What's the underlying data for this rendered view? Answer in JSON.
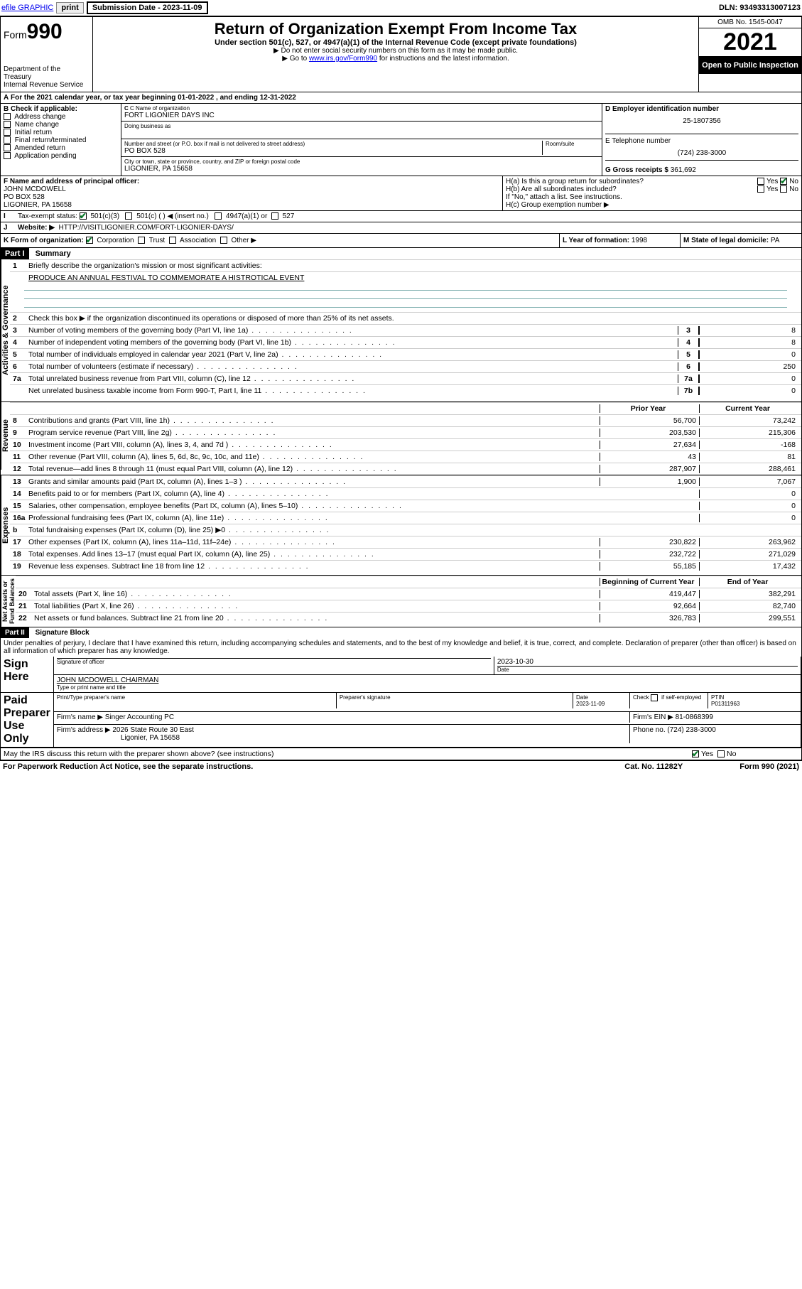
{
  "topbar": {
    "efile": "efile GRAPHIC",
    "print": "print",
    "sub_label": "Submission Date - ",
    "sub_date": "2023-11-09",
    "dln_label": "DLN: ",
    "dln": "93493313007123"
  },
  "hdr": {
    "form": "Form",
    "num": "990",
    "dept": "Department of the Treasury",
    "irs": "Internal Revenue Service",
    "title": "Return of Organization Exempt From Income Tax",
    "sub": "Under section 501(c), 527, or 4947(a)(1) of the Internal Revenue Code (except private foundations)",
    "ssn": "▶ Do not enter social security numbers on this form as it may be made public.",
    "goto_pre": "▶ Go to ",
    "goto_link": "www.irs.gov/Form990",
    "goto_post": " for instructions and the latest information.",
    "omb": "OMB No. 1545-0047",
    "year": "2021",
    "open": "Open to Public Inspection"
  },
  "A": {
    "text": "For the 2021 calendar year, or tax year beginning ",
    "beg": "01-01-2022",
    "mid": " , and ending ",
    "end": "12-31-2022"
  },
  "B": {
    "label": "B Check if applicable:",
    "items": [
      "Address change",
      "Name change",
      "Initial return",
      "Final return/terminated",
      "Amended return",
      "Application pending"
    ]
  },
  "C": {
    "name_lbl": "C Name of organization",
    "name": "FORT LIGONIER DAYS INC",
    "dba_lbl": "Doing business as",
    "addr_lbl": "Number and street (or P.O. box if mail is not delivered to street address)",
    "addr": "PO BOX 528",
    "room_lbl": "Room/suite",
    "city_lbl": "City or town, state or province, country, and ZIP or foreign postal code",
    "city": "LIGONIER, PA  15658"
  },
  "D": {
    "lbl": "D Employer identification number",
    "val": "25-1807356"
  },
  "E": {
    "lbl": "E Telephone number",
    "val": "(724) 238-3000"
  },
  "G": {
    "lbl": "G Gross receipts $ ",
    "val": "361,692"
  },
  "F": {
    "lbl": "F  Name and address of principal officer:",
    "name": "JOHN MCDOWELL",
    "addr1": "PO BOX 528",
    "addr2": "LIGONIER, PA  15658"
  },
  "H": {
    "a": "H(a)  Is this a group return for subordinates?",
    "b": "H(b)  Are all subordinates included?",
    "note": "If \"No,\" attach a list. See instructions.",
    "c": "H(c)  Group exemption number ▶",
    "yes": "Yes",
    "no": "No"
  },
  "I": {
    "lbl": "Tax-exempt status:",
    "o1": "501(c)(3)",
    "o2": "501(c) (  ) ◀ (insert no.)",
    "o3": "4947(a)(1) or",
    "o4": "527"
  },
  "J": {
    "lbl": "Website: ▶",
    "val": "HTTP://VISITLIGONIER.COM/FORT-LIGONIER-DAYS/"
  },
  "K": {
    "lbl": "K Form of organization:",
    "corp": "Corporation",
    "trust": "Trust",
    "assoc": "Association",
    "other": "Other ▶"
  },
  "L": {
    "lbl": "L Year of formation: ",
    "val": "1998"
  },
  "M": {
    "lbl": "M State of legal domicile: ",
    "val": "PA"
  },
  "part1": {
    "hdr": "Part I",
    "title": "Summary",
    "l1": "Briefly describe the organization's mission or most significant activities:",
    "mission": "PRODUCE AN ANNUAL FESTIVAL TO COMMEMORATE A HISTROTICAL EVENT",
    "l2": "Check this box ▶       if the organization discontinued its operations or disposed of more than 25% of its net assets.",
    "sideA": "Activities & Governance",
    "sideR": "Revenue",
    "sideE": "Expenses",
    "sideN": "Net Assets or Fund Balances",
    "prior": "Prior Year",
    "curr": "Current Year",
    "boy": "Beginning of Current Year",
    "eoy": "End of Year",
    "rows_ag": [
      {
        "n": "3",
        "d": "Number of voting members of the governing body (Part VI, line 1a)",
        "k": "3",
        "v": "8"
      },
      {
        "n": "4",
        "d": "Number of independent voting members of the governing body (Part VI, line 1b)",
        "k": "4",
        "v": "8"
      },
      {
        "n": "5",
        "d": "Total number of individuals employed in calendar year 2021 (Part V, line 2a)",
        "k": "5",
        "v": "0"
      },
      {
        "n": "6",
        "d": "Total number of volunteers (estimate if necessary)",
        "k": "6",
        "v": "250"
      },
      {
        "n": "7a",
        "d": "Total unrelated business revenue from Part VIII, column (C), line 12",
        "k": "7a",
        "v": "0"
      },
      {
        "n": "",
        "d": "Net unrelated business taxable income from Form 990-T, Part I, line 11",
        "k": "7b",
        "v": "0"
      }
    ],
    "rows_rev": [
      {
        "n": "8",
        "d": "Contributions and grants (Part VIII, line 1h)",
        "p": "56,700",
        "c": "73,242"
      },
      {
        "n": "9",
        "d": "Program service revenue (Part VIII, line 2g)",
        "p": "203,530",
        "c": "215,306"
      },
      {
        "n": "10",
        "d": "Investment income (Part VIII, column (A), lines 3, 4, and 7d )",
        "p": "27,634",
        "c": "-168"
      },
      {
        "n": "11",
        "d": "Other revenue (Part VIII, column (A), lines 5, 6d, 8c, 9c, 10c, and 11e)",
        "p": "43",
        "c": "81"
      },
      {
        "n": "12",
        "d": "Total revenue—add lines 8 through 11 (must equal Part VIII, column (A), line 12)",
        "p": "287,907",
        "c": "288,461"
      }
    ],
    "rows_exp": [
      {
        "n": "13",
        "d": "Grants and similar amounts paid (Part IX, column (A), lines 1–3 )",
        "p": "1,900",
        "c": "7,067"
      },
      {
        "n": "14",
        "d": "Benefits paid to or for members (Part IX, column (A), line 4)",
        "p": "",
        "c": "0"
      },
      {
        "n": "15",
        "d": "Salaries, other compensation, employee benefits (Part IX, column (A), lines 5–10)",
        "p": "",
        "c": "0"
      },
      {
        "n": "16a",
        "d": "Professional fundraising fees (Part IX, column (A), line 11e)",
        "p": "",
        "c": "0"
      },
      {
        "n": "b",
        "d": "Total fundraising expenses (Part IX, column (D), line 25) ▶0",
        "p": "shade",
        "c": "shade"
      },
      {
        "n": "17",
        "d": "Other expenses (Part IX, column (A), lines 11a–11d, 11f–24e)",
        "p": "230,822",
        "c": "263,962"
      },
      {
        "n": "18",
        "d": "Total expenses. Add lines 13–17 (must equal Part IX, column (A), line 25)",
        "p": "232,722",
        "c": "271,029"
      },
      {
        "n": "19",
        "d": "Revenue less expenses. Subtract line 18 from line 12",
        "p": "55,185",
        "c": "17,432"
      }
    ],
    "rows_na": [
      {
        "n": "20",
        "d": "Total assets (Part X, line 16)",
        "p": "419,447",
        "c": "382,291"
      },
      {
        "n": "21",
        "d": "Total liabilities (Part X, line 26)",
        "p": "92,664",
        "c": "82,740"
      },
      {
        "n": "22",
        "d": "Net assets or fund balances. Subtract line 21 from line 20",
        "p": "326,783",
        "c": "299,551"
      }
    ]
  },
  "part2": {
    "hdr": "Part II",
    "title": "Signature Block",
    "decl": "Under penalties of perjury, I declare that I have examined this return, including accompanying schedules and statements, and to the best of my knowledge and belief, it is true, correct, and complete. Declaration of preparer (other than officer) is based on all information of which preparer has any knowledge.",
    "sign": "Sign Here",
    "sig_lbl": "Signature of officer",
    "date_lbl": "Date",
    "sig_date": "2023-10-30",
    "officer": "JOHN MCDOWELL CHAIRMAN",
    "type_lbl": "Type or print name and title",
    "paid": "Paid Preparer Use Only",
    "pt_lbl": "Print/Type preparer's name",
    "ps_lbl": "Preparer's signature",
    "d_lbl": "Date",
    "d_val": "2023-11-09",
    "chk_lbl": "Check        if self-employed",
    "ptin_lbl": "PTIN",
    "ptin": "P01311963",
    "firm_lbl": "Firm's name   ▶",
    "firm": "Singer Accounting PC",
    "ein_lbl": "Firm's EIN ▶",
    "ein": "81-0868399",
    "faddr_lbl": "Firm's address ▶",
    "faddr1": "2026 State Route 30 East",
    "faddr2": "Ligonier, PA  15658",
    "phone_lbl": "Phone no. ",
    "phone": "(724) 238-3000",
    "may": "May the IRS discuss this return with the preparer shown above? (see instructions)",
    "yes": "Yes",
    "no": "No"
  },
  "footer": {
    "pra": "For Paperwork Reduction Act Notice, see the separate instructions.",
    "cat": "Cat. No. 11282Y",
    "form": "Form 990 (2021)"
  }
}
